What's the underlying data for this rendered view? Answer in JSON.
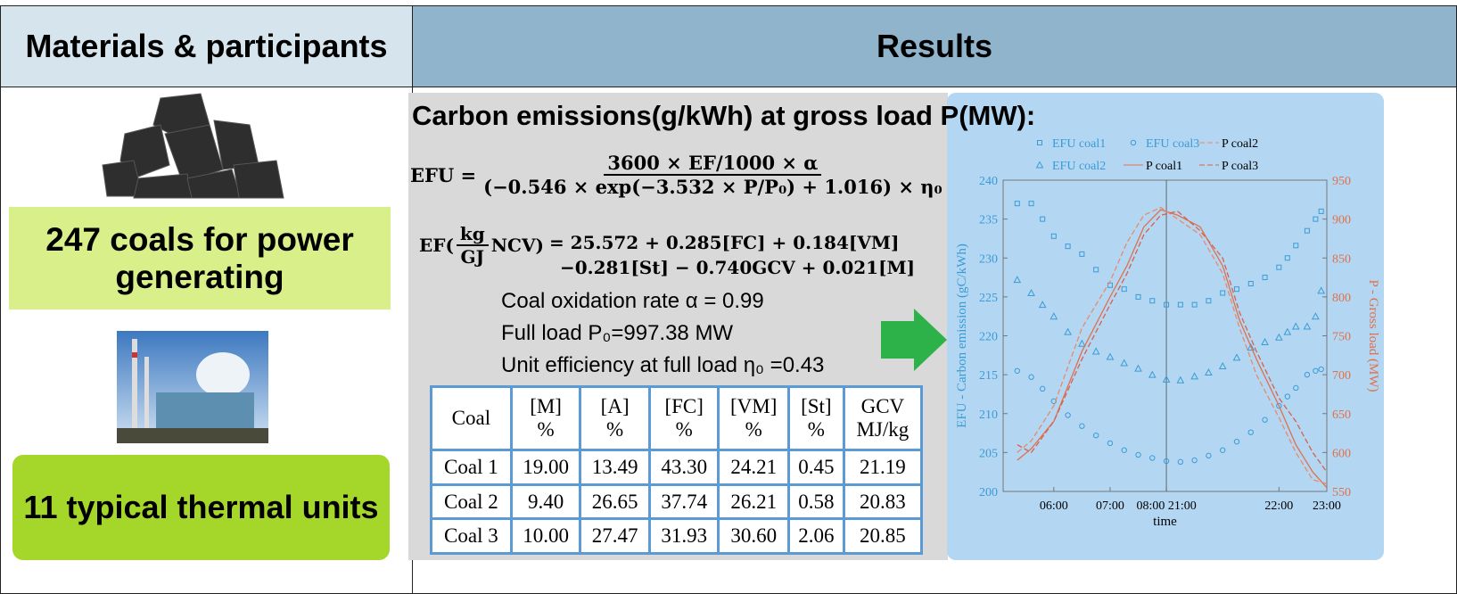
{
  "header": {
    "left": "Materials & participants",
    "right": "Results"
  },
  "materials": {
    "coals": "247 coals for power generating",
    "units": "11  typical thermal units"
  },
  "results": {
    "title": "Carbon emissions(g/kWh) at gross load P(MW):",
    "formula1": {
      "lhs": "EFU =",
      "numerator": "3600 × EF/1000 × α",
      "denominator": "(−0.546 × exp(−3.532 × P/P₀) + 1.016) × η₀"
    },
    "formula2": {
      "lhs": "EF(",
      "unit_top": "kg",
      "unit_bottom": "GJ",
      "unit_post": "NCV)",
      "line1": "= 25.572 + 0.285[FC] + 0.184[VM]",
      "line2": "−0.281[St] − 0.740GCV + 0.021[M]"
    },
    "params": [
      "Coal oxidation rate  α = 0.99",
      "Full load  P₀=997.38 MW",
      "Unit efficiency at full load  η₀ =0.43"
    ],
    "table": {
      "header": [
        [
          "Coal"
        ],
        [
          "[M]",
          "%"
        ],
        [
          "[A]",
          "%"
        ],
        [
          "[FC]",
          "%"
        ],
        [
          "[VM]",
          "%"
        ],
        [
          "[St]",
          "%"
        ],
        [
          "GCV",
          "MJ/kg"
        ]
      ],
      "rows": [
        [
          "Coal 1",
          "19.00",
          "13.49",
          "43.30",
          "24.21",
          "0.45",
          "21.19"
        ],
        [
          "Coal 2",
          "9.40",
          "26.65",
          "37.74",
          "26.21",
          "0.58",
          "20.83"
        ],
        [
          "Coal 3",
          "10.00",
          "27.47",
          "31.93",
          "30.60",
          "2.06",
          "20.85"
        ]
      ]
    }
  },
  "chart_data": {
    "type": "scatter",
    "xlabel": "time",
    "ylabel": "EFU - Carbon emission (gC/kWh)",
    "y2label": "P - Gross load (MW)",
    "xlim": [
      5.1,
      10.85
    ],
    "xticks": [
      {
        "value": 6,
        "label": "06:00"
      },
      {
        "value": 7,
        "label": "07:00"
      },
      {
        "value": 8,
        "label": "08:00 21:00"
      },
      {
        "value": 10,
        "label": "22:00"
      },
      {
        "value": 10.85,
        "label": "23:00"
      }
    ],
    "ylim": [
      200,
      240
    ],
    "yticks": [
      200,
      205,
      210,
      215,
      220,
      225,
      230,
      235,
      240
    ],
    "y2lim": [
      550,
      950
    ],
    "y2ticks": [
      550,
      600,
      650,
      700,
      750,
      800,
      850,
      900,
      950
    ],
    "series": [
      {
        "name": "EFU coal1",
        "color": "#3a9bd6",
        "marker": "square",
        "x": [
          5.35,
          5.6,
          5.8,
          6,
          6.25,
          6.5,
          6.75,
          7,
          7.25,
          7.5,
          7.75,
          8,
          8.25,
          8.5,
          8.75,
          9,
          9.25,
          9.5,
          9.75,
          10,
          10.15,
          10.3,
          10.5,
          10.65,
          10.75
        ],
        "values": [
          237,
          237,
          235,
          232.8,
          231.5,
          230.5,
          228.5,
          226.5,
          226,
          225,
          224.5,
          224,
          224,
          224,
          224.5,
          225.5,
          226,
          226.7,
          227.5,
          228.8,
          230,
          231.6,
          233.5,
          235,
          236
        ]
      },
      {
        "name": "EFU coal2",
        "color": "#3a9bd6",
        "marker": "triangle",
        "x": [
          5.35,
          5.6,
          5.8,
          6,
          6.25,
          6.5,
          6.75,
          7,
          7.25,
          7.5,
          7.75,
          8,
          8.25,
          8.5,
          8.75,
          9,
          9.25,
          9.5,
          9.75,
          10,
          10.15,
          10.3,
          10.5,
          10.65,
          10.75
        ],
        "values": [
          227.2,
          225.5,
          224,
          222.5,
          220.5,
          219,
          218,
          217.3,
          216.5,
          215.8,
          215,
          214.4,
          214.3,
          214.8,
          215.3,
          216.1,
          217.2,
          218.5,
          219.2,
          219.8,
          220.5,
          221.2,
          221.2,
          222.5,
          225.8
        ]
      },
      {
        "name": "EFU coal3",
        "color": "#3a9bd6",
        "marker": "circle",
        "x": [
          5.35,
          5.6,
          5.8,
          6,
          6.25,
          6.5,
          6.75,
          7,
          7.25,
          7.5,
          7.75,
          8,
          8.25,
          8.5,
          8.75,
          9,
          9.25,
          9.5,
          9.75,
          10,
          10.15,
          10.3,
          10.5,
          10.65,
          10.75
        ],
        "values": [
          215.5,
          214.7,
          213.2,
          211.6,
          209.8,
          208.4,
          207.2,
          206.2,
          205.3,
          204.7,
          204.3,
          203.9,
          203.8,
          204,
          204.6,
          205.3,
          206.4,
          207.6,
          209.2,
          211,
          212.2,
          213.3,
          215,
          215.5,
          215.7
        ]
      },
      {
        "name": "P coal1",
        "color": "#e0704c",
        "marker": "line",
        "dash": false,
        "axis": "y2",
        "x": [
          5.35,
          5.6,
          6,
          6.5,
          7,
          7.3,
          7.6,
          7.9,
          8.2,
          8.6,
          9,
          9.3,
          9.6,
          10,
          10.3,
          10.6,
          10.85
        ],
        "values": [
          590,
          605,
          640,
          730,
          800,
          840,
          890,
          912,
          905,
          890,
          840,
          770,
          720,
          660,
          610,
          575,
          555
        ]
      },
      {
        "name": "P coal2",
        "color": "#e88a6a",
        "marker": "line",
        "dash": true,
        "axis": "y2",
        "x": [
          5.35,
          5.6,
          6,
          6.5,
          7,
          7.3,
          7.6,
          7.9,
          8.2,
          8.6,
          9,
          9.3,
          9.6,
          10,
          10.3,
          10.6,
          10.85
        ],
        "values": [
          600,
          615,
          660,
          760,
          820,
          870,
          905,
          915,
          900,
          880,
          830,
          760,
          700,
          645,
          600,
          565,
          560
        ]
      },
      {
        "name": "P coal3",
        "color": "#d9604a",
        "marker": "line",
        "dash": true,
        "axis": "y2",
        "x": [
          5.35,
          5.6,
          6,
          6.5,
          7,
          7.3,
          7.6,
          7.9,
          8.2,
          8.6,
          9,
          9.3,
          9.6,
          10,
          10.3,
          10.6,
          10.85
        ],
        "values": [
          610,
          600,
          640,
          720,
          790,
          830,
          880,
          905,
          910,
          885,
          850,
          780,
          730,
          670,
          640,
          600,
          575
        ]
      }
    ]
  }
}
